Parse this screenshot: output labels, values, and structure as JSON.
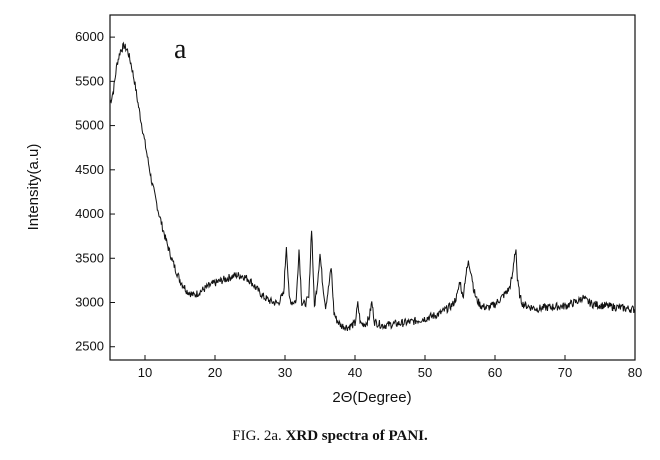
{
  "caption": {
    "prefix": "FIG. 2a.",
    "title": "XRD spectra of PANI."
  },
  "chart_data": {
    "type": "line",
    "panel_label": "a",
    "xlabel": "2Θ(Degree)",
    "ylabel": "Intensity(a.u)",
    "xlim": [
      5,
      80
    ],
    "ylim": [
      2350,
      6250
    ],
    "xticks": [
      10,
      20,
      30,
      40,
      50,
      60,
      70,
      80
    ],
    "yticks": [
      2500,
      3000,
      3500,
      4000,
      4500,
      5000,
      5500,
      6000
    ],
    "grid": false,
    "line_color": "#111111",
    "series": [
      {
        "x": [
          5,
          5.5,
          6,
          6.5,
          7,
          7.5,
          8,
          8.5,
          9,
          10,
          11,
          12,
          13,
          14,
          15,
          16,
          17,
          18,
          19,
          20,
          21,
          22,
          23,
          24,
          25,
          26,
          27,
          28,
          29,
          29.8,
          30.2,
          30.6,
          31,
          31.6,
          32,
          32.4,
          32.8,
          33.4,
          33.8,
          34.2,
          34.6,
          35,
          35.4,
          35.8,
          36.2,
          36.6,
          37,
          37.4,
          38,
          39,
          40,
          40.4,
          40.8,
          41.5,
          42,
          42.4,
          42.8,
          44,
          46,
          48,
          50,
          52,
          53,
          54,
          54.6,
          55,
          55.4,
          55.8,
          56.2,
          56.6,
          57,
          57.4,
          58,
          59,
          60,
          61,
          62,
          62.5,
          62.8,
          63,
          63.2,
          63.6,
          64,
          65,
          66,
          68,
          70,
          72,
          72.5,
          73,
          74,
          76,
          78,
          80
        ],
        "y": [
          5250,
          5400,
          5700,
          5850,
          5900,
          5850,
          5700,
          5500,
          5250,
          4800,
          4350,
          4000,
          3700,
          3450,
          3250,
          3130,
          3080,
          3130,
          3180,
          3220,
          3250,
          3280,
          3310,
          3300,
          3250,
          3150,
          3060,
          3010,
          2990,
          3100,
          3650,
          3050,
          3000,
          3020,
          3600,
          3000,
          2980,
          3050,
          3850,
          2950,
          3200,
          3550,
          3200,
          2960,
          3150,
          3400,
          2880,
          2800,
          2740,
          2720,
          2760,
          2980,
          2760,
          2760,
          2820,
          3000,
          2780,
          2740,
          2760,
          2780,
          2820,
          2870,
          2920,
          2980,
          3080,
          3250,
          3050,
          3300,
          3450,
          3350,
          3130,
          3030,
          2960,
          2940,
          2980,
          3060,
          3150,
          3300,
          3550,
          3600,
          3250,
          3050,
          2980,
          2950,
          2930,
          2950,
          2960,
          3020,
          3060,
          3020,
          2980,
          2960,
          2940,
          2920
        ]
      }
    ]
  }
}
